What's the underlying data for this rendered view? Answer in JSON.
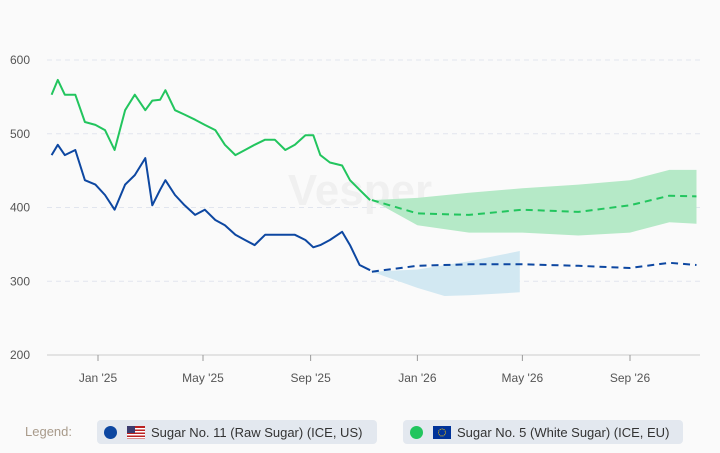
{
  "chart_data": {
    "type": "line",
    "ylim": [
      200,
      600
    ],
    "yticks": [
      "200",
      "300",
      "400",
      "500",
      "600"
    ],
    "xticks": [
      {
        "date": "2025-01-01",
        "label": "Jan '25"
      },
      {
        "date": "2025-05-01",
        "label": "May '25"
      },
      {
        "date": "2025-09-01",
        "label": "Sep '25"
      },
      {
        "date": "2026-01-01",
        "label": "Jan '26"
      },
      {
        "date": "2026-05-01",
        "label": "May '26"
      },
      {
        "date": "2026-09-01",
        "label": "Sep '26"
      }
    ],
    "grid": true,
    "legend_position": "bottom",
    "watermark": "Vesper",
    "series": [
      {
        "name": "Sugar No. 11 (Raw Sugar) (ICE, US)",
        "color": "#0d47a1",
        "history": [
          [
            "2024-11-09",
            471
          ],
          [
            "2024-11-16",
            485
          ],
          [
            "2024-11-24",
            471
          ],
          [
            "2024-12-06",
            478
          ],
          [
            "2024-12-17",
            437
          ],
          [
            "2024-12-29",
            431
          ],
          [
            "2025-01-09",
            417
          ],
          [
            "2025-01-20",
            397
          ],
          [
            "2025-02-01",
            431
          ],
          [
            "2025-02-12",
            444
          ],
          [
            "2025-02-24",
            467
          ],
          [
            "2025-03-04",
            403
          ],
          [
            "2025-03-13",
            424
          ],
          [
            "2025-03-19",
            437
          ],
          [
            "2025-03-30",
            417
          ],
          [
            "2025-04-10",
            403
          ],
          [
            "2025-04-22",
            390
          ],
          [
            "2025-05-03",
            397
          ],
          [
            "2025-05-15",
            383
          ],
          [
            "2025-05-26",
            376
          ],
          [
            "2025-06-07",
            363
          ],
          [
            "2025-06-18",
            356
          ],
          [
            "2025-06-29",
            349
          ],
          [
            "2025-07-11",
            363
          ],
          [
            "2025-07-22",
            363
          ],
          [
            "2025-08-03",
            363
          ],
          [
            "2025-08-14",
            363
          ],
          [
            "2025-08-26",
            356
          ],
          [
            "2025-09-04",
            346
          ],
          [
            "2025-09-12",
            349
          ],
          [
            "2025-09-23",
            356
          ],
          [
            "2025-10-07",
            367
          ],
          [
            "2025-10-16",
            349
          ],
          [
            "2025-10-27",
            322
          ],
          [
            "2025-11-08",
            315
          ]
        ],
        "forecast": [
          [
            "2025-11-10",
            313
          ],
          [
            "2026-01-01",
            321
          ],
          [
            "2026-03-01",
            323
          ],
          [
            "2026-05-01",
            323
          ],
          [
            "2026-07-04",
            321
          ],
          [
            "2026-09-01",
            318
          ],
          [
            "2026-10-16",
            325
          ],
          [
            "2026-11-16",
            322
          ]
        ],
        "band_color": "#d2e8f2",
        "band_upper": [
          [
            "2025-11-10",
            313
          ],
          [
            "2026-01-01",
            316
          ],
          [
            "2026-03-01",
            327
          ],
          [
            "2026-04-28",
            341
          ]
        ],
        "band_lower": [
          [
            "2025-11-10",
            313
          ],
          [
            "2026-01-01",
            291
          ],
          [
            "2026-02-01",
            280
          ],
          [
            "2026-03-01",
            281
          ],
          [
            "2026-04-28",
            285
          ]
        ]
      },
      {
        "name": "Sugar No. 5 (White Sugar) (ICE, EU)",
        "color": "#22c55e",
        "history": [
          [
            "2024-11-09",
            553
          ],
          [
            "2024-11-16",
            573
          ],
          [
            "2024-11-24",
            553
          ],
          [
            "2024-12-06",
            553
          ],
          [
            "2024-12-17",
            516
          ],
          [
            "2024-12-29",
            512
          ],
          [
            "2025-01-09",
            505
          ],
          [
            "2025-01-20",
            478
          ],
          [
            "2025-02-01",
            532
          ],
          [
            "2025-02-12",
            553
          ],
          [
            "2025-02-24",
            532
          ],
          [
            "2025-03-04",
            545
          ],
          [
            "2025-03-13",
            546
          ],
          [
            "2025-03-19",
            559
          ],
          [
            "2025-03-30",
            532
          ],
          [
            "2025-04-10",
            526
          ],
          [
            "2025-04-22",
            519
          ],
          [
            "2025-05-03",
            512
          ],
          [
            "2025-05-15",
            505
          ],
          [
            "2025-05-26",
            485
          ],
          [
            "2025-06-07",
            471
          ],
          [
            "2025-06-18",
            478
          ],
          [
            "2025-06-29",
            485
          ],
          [
            "2025-07-11",
            492
          ],
          [
            "2025-07-22",
            492
          ],
          [
            "2025-08-03",
            478
          ],
          [
            "2025-08-14",
            485
          ],
          [
            "2025-08-26",
            498
          ],
          [
            "2025-09-04",
            498
          ],
          [
            "2025-09-12",
            471
          ],
          [
            "2025-09-23",
            461
          ],
          [
            "2025-10-07",
            457
          ],
          [
            "2025-10-16",
            437
          ],
          [
            "2025-10-27",
            424
          ],
          [
            "2025-11-08",
            410
          ]
        ],
        "forecast": [
          [
            "2025-11-10",
            410
          ],
          [
            "2026-01-01",
            392
          ],
          [
            "2026-03-01",
            390
          ],
          [
            "2026-05-01",
            397
          ],
          [
            "2026-07-04",
            394
          ],
          [
            "2026-09-01",
            403
          ],
          [
            "2026-10-16",
            416
          ],
          [
            "2026-11-16",
            415
          ]
        ],
        "band_color": "#b5e9c7",
        "band_upper": [
          [
            "2025-11-10",
            410
          ],
          [
            "2026-01-01",
            413
          ],
          [
            "2026-03-01",
            420
          ],
          [
            "2026-05-01",
            426
          ],
          [
            "2026-07-04",
            431
          ],
          [
            "2026-09-01",
            437
          ],
          [
            "2026-10-16",
            451
          ],
          [
            "2026-11-16",
            451
          ]
        ],
        "band_lower": [
          [
            "2025-11-10",
            410
          ],
          [
            "2026-01-01",
            376
          ],
          [
            "2026-03-01",
            366
          ],
          [
            "2026-05-01",
            366
          ],
          [
            "2026-07-04",
            362
          ],
          [
            "2026-09-01",
            366
          ],
          [
            "2026-10-16",
            380
          ],
          [
            "2026-11-16",
            378
          ]
        ]
      }
    ]
  },
  "legend": {
    "label": "Legend:",
    "items": [
      {
        "label": "Sugar No. 11 (Raw Sugar) (ICE, US)",
        "flag": "us-flag-icon"
      },
      {
        "label": "Sugar No. 5 (White Sugar) (ICE, EU)",
        "flag": "eu-flag-icon"
      }
    ]
  }
}
